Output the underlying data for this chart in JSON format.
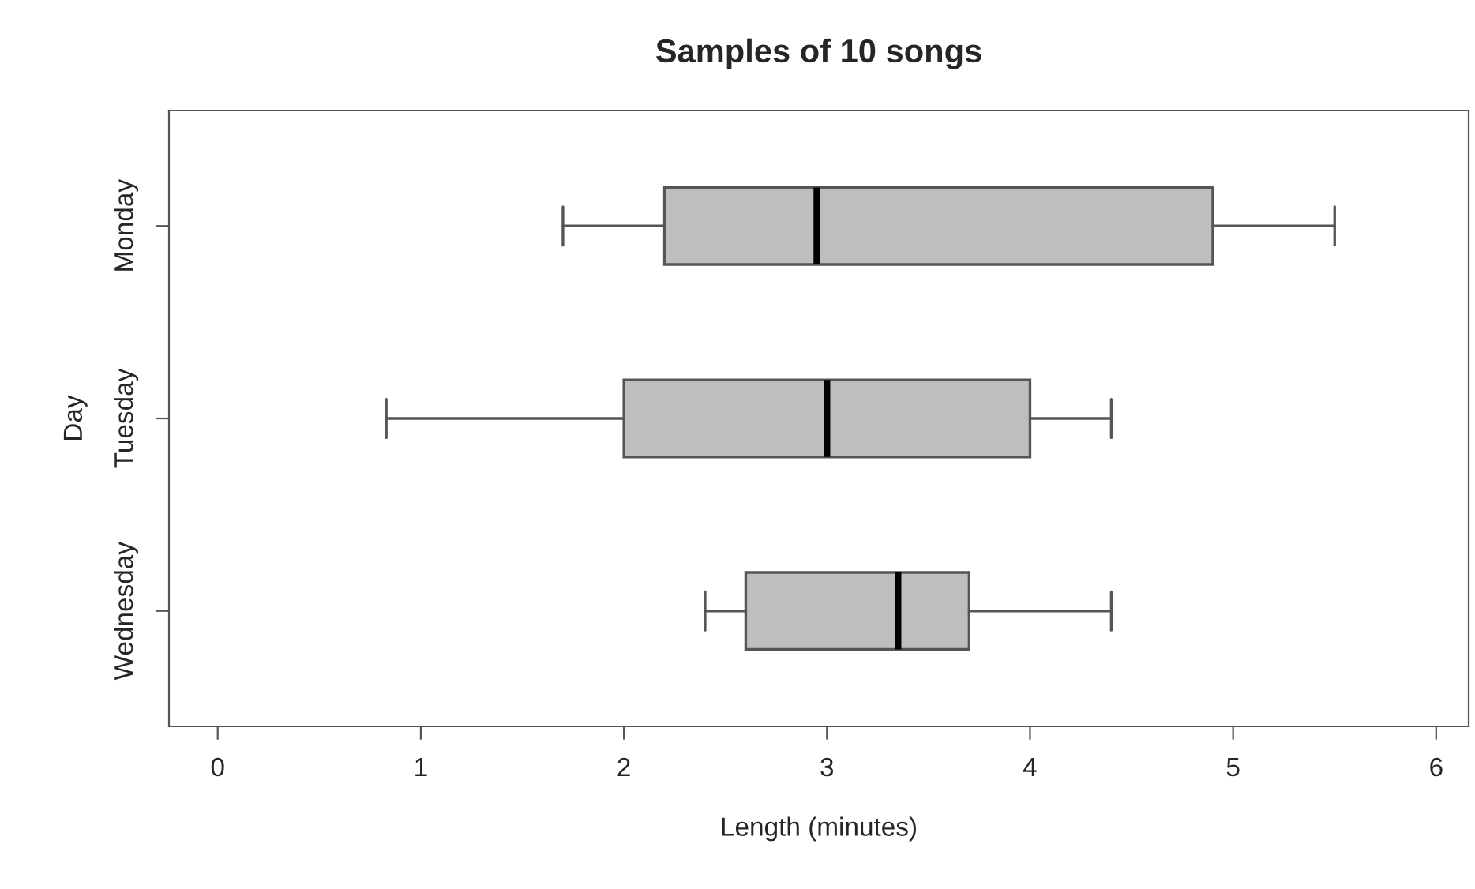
{
  "chart_data": {
    "type": "box",
    "title": "Samples of 10 songs",
    "xlabel": "Length (minutes)",
    "ylabel": "Day",
    "orientation": "horizontal",
    "categories": [
      "Monday",
      "Tuesday",
      "Wednesday"
    ],
    "color": "#bebebe",
    "boxes": [
      {
        "low": 1.7,
        "q1": 2.2,
        "median": 2.95,
        "q3": 4.9,
        "high": 5.5
      },
      {
        "low": 0.83,
        "q1": 2.0,
        "median": 3.0,
        "q3": 4.0,
        "high": 4.4
      },
      {
        "low": 2.4,
        "q1": 2.6,
        "median": 3.35,
        "q3": 3.7,
        "high": 4.4
      }
    ],
    "xlim": [
      -0.24,
      6.16
    ],
    "xticks": [
      0,
      1,
      2,
      3,
      4,
      5,
      6
    ],
    "grid": false
  }
}
